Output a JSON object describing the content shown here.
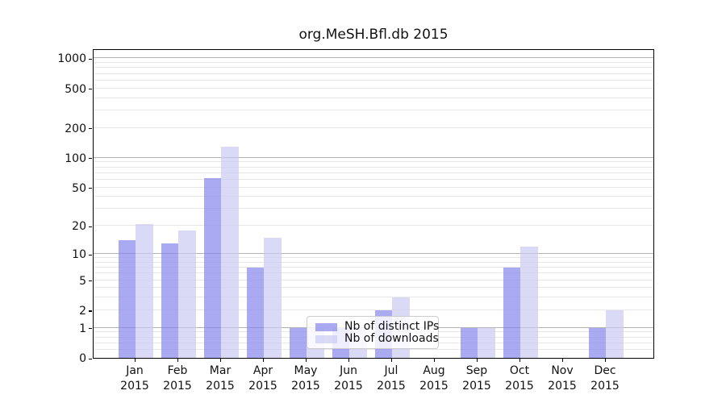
{
  "chart_data": {
    "type": "bar",
    "title": "org.MeSH.Bfl.db 2015",
    "categories": [
      "Jan",
      "Feb",
      "Mar",
      "Apr",
      "May",
      "Jun",
      "Jul",
      "Aug",
      "Sep",
      "Oct",
      "Nov",
      "Dec"
    ],
    "category_year": "2015",
    "series": [
      {
        "name": "Nb of distinct IPs",
        "color": "rgba(134,134,236,0.7)",
        "values": [
          14,
          13,
          62,
          7,
          1,
          1,
          2,
          0,
          1,
          7,
          0,
          1
        ]
      },
      {
        "name": "Nb of downloads",
        "color": "rgba(202,202,244,0.7)",
        "values": [
          21,
          18,
          130,
          15,
          1,
          1,
          3,
          0,
          1,
          12,
          0,
          2
        ]
      }
    ],
    "yscale": "log1p",
    "ytick_labels": [
      0,
      1,
      2,
      5,
      10,
      20,
      50,
      100,
      200,
      500,
      1000
    ],
    "major_gridlines": [
      1,
      10,
      100,
      1000
    ],
    "minor_gridlines": [
      0.2,
      0.4,
      0.6,
      0.8,
      2,
      3,
      4,
      5,
      6,
      7,
      8,
      9,
      20,
      30,
      40,
      50,
      60,
      70,
      80,
      90,
      200,
      300,
      400,
      500,
      600,
      700,
      800,
      900
    ],
    "ylim_top_log1p": 7.14,
    "xlabel": "",
    "ylabel": "",
    "legend_position": "lower center",
    "grid": true,
    "colors": {
      "series_dark": "#aaaaf2",
      "series_light": "#d9d9f7",
      "major_grid": "#b3b3b3",
      "minor_grid": "#e7e7e7",
      "spine": "#000000",
      "background": "#ffffff"
    }
  }
}
